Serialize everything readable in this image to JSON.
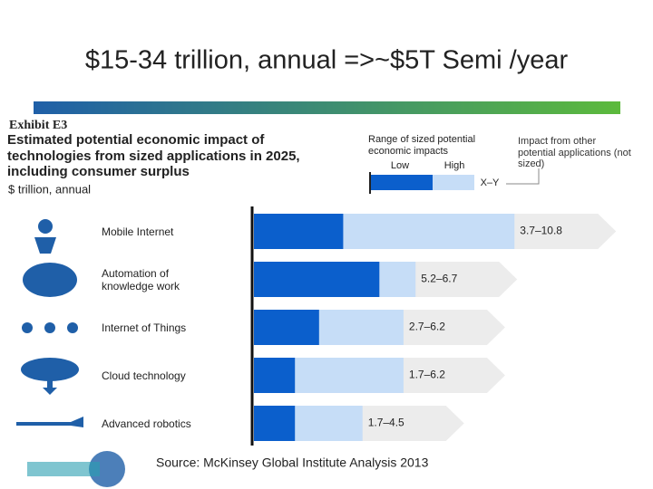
{
  "slide_title": "$15-34 trillion, annual =>~$5T Semi /year",
  "source": "Source: McKinsey Global Institute Analysis 2013",
  "chart_data": {
    "type": "range-bar",
    "exhibit": "Exhibit E3",
    "title": "Estimated potential economic impact of technologies from sized applications in 2025, including consumer surplus",
    "subtitle": "$ trillion, annual",
    "legend_title": "Range of sized potential economic impacts",
    "legend_range_label": "X–Y",
    "legend_other": "Impact from other potential applications (not sized)",
    "categories": [
      "Mobile Internet",
      "Automation of knowledge work",
      "Internet of Things",
      "Cloud technology",
      "Advanced robotics"
    ],
    "series": [
      {
        "name": "Low",
        "color": "#0b5fcc",
        "values": [
          3.7,
          5.2,
          2.7,
          1.7,
          1.7
        ]
      },
      {
        "name": "High",
        "color": "#c6ddf7",
        "values": [
          10.8,
          6.7,
          6.2,
          6.2,
          4.5
        ]
      }
    ],
    "value_labels": [
      "3.7–10.8",
      "5.2–6.7",
      "2.7–6.2",
      "1.7–6.2",
      "1.7–4.5"
    ]
  }
}
